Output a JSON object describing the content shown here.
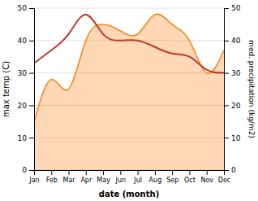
{
  "chart_data": {
    "type": "line",
    "categories": [
      "Jan",
      "Feb",
      "Mar",
      "Apr",
      "May",
      "Jun",
      "Jul",
      "Aug",
      "Sep",
      "Oct",
      "Nov",
      "Dec"
    ],
    "xlabel": "date (month)",
    "ylabel": "max temp (C)",
    "y2label": "med. precipitation (kg/m2)",
    "ylim": [
      0,
      50
    ],
    "yticks": [
      0,
      10,
      20,
      30,
      40,
      50
    ],
    "y2lim": [
      0,
      50
    ],
    "y2ticks": [
      0,
      10,
      20,
      30,
      40,
      50
    ],
    "grid": true,
    "series": [
      {
        "color": "#c0392b",
        "values": [
          33,
          37,
          42,
          48,
          42,
          40,
          40,
          38,
          36,
          35,
          31,
          30
        ]
      },
      {
        "type": "area",
        "axis": "y2",
        "values": [
          15,
          28,
          25,
          40,
          45,
          43,
          42,
          48,
          45,
          40,
          30,
          37
        ]
      }
    ]
  }
}
